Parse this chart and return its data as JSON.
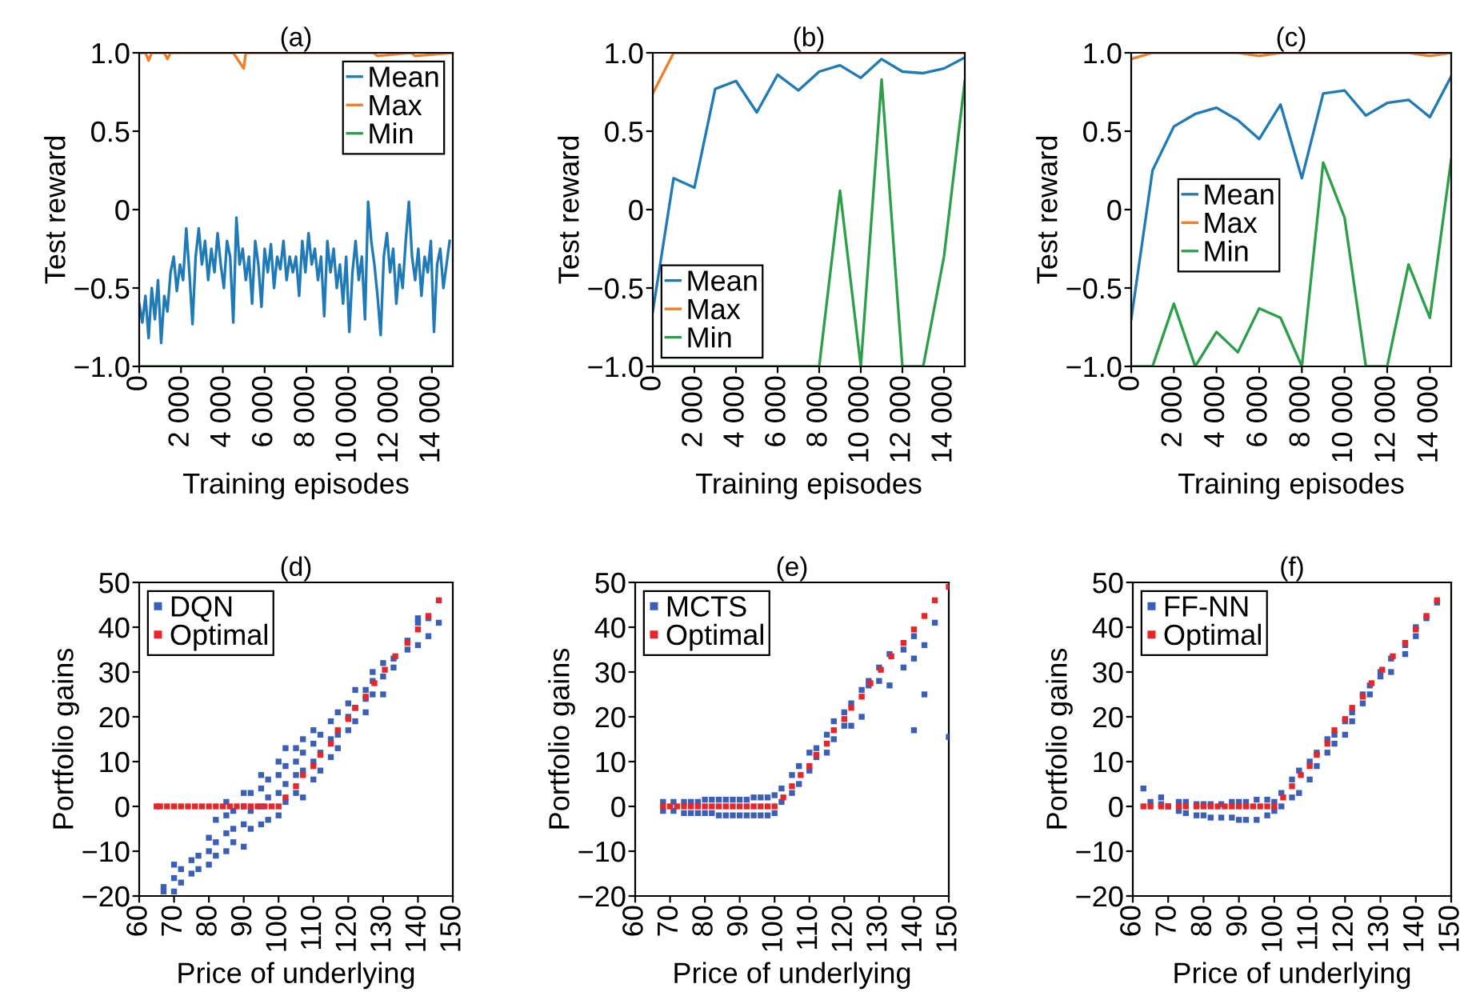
{
  "chart_data": [
    {
      "type": "line",
      "title": "(a)",
      "xlabel": "Training episodes",
      "ylabel": "Test reward",
      "xlim": [
        0,
        15000
      ],
      "ylim": [
        -1.0,
        1.0
      ],
      "xticks": [
        0,
        {
          "value": 2000,
          "label": "2 000"
        },
        {
          "value": 4000,
          "label": "4 000"
        },
        {
          "value": 6000,
          "label": "6 000"
        },
        {
          "value": 8000,
          "label": "8 000"
        },
        {
          "value": 10000,
          "label": "10 000"
        },
        {
          "value": 12000,
          "label": "12 000"
        },
        {
          "value": 14000,
          "label": "14 000"
        }
      ],
      "yticks": [
        {
          "value": 1.0,
          "label": "1.0"
        },
        {
          "value": 0.5,
          "label": "0.5"
        },
        0,
        {
          "value": -0.5,
          "label": "−0.5"
        },
        {
          "value": -1.0,
          "label": "−1.0"
        }
      ],
      "legend": "top right",
      "line_style": "solid",
      "grid": false,
      "series": [
        {
          "name": "Mean",
          "color": "#1f7ab8",
          "x": [
            0,
            150,
            300,
            450,
            600,
            750,
            900,
            1050,
            1200,
            1350,
            1500,
            1650,
            1800,
            1950,
            2100,
            2250,
            2400,
            2550,
            2700,
            2850,
            3000,
            3150,
            3300,
            3450,
            3600,
            3750,
            3900,
            4050,
            4200,
            4350,
            4500,
            4650,
            4800,
            4950,
            5100,
            5250,
            5400,
            5550,
            5700,
            5850,
            6000,
            6150,
            6300,
            6450,
            6600,
            6750,
            6900,
            7050,
            7200,
            7350,
            7500,
            7650,
            7800,
            7950,
            8100,
            8250,
            8400,
            8550,
            8700,
            8850,
            9000,
            9150,
            9300,
            9450,
            9600,
            9750,
            9900,
            10050,
            10200,
            10350,
            10500,
            10650,
            10800,
            10950,
            11100,
            11250,
            11400,
            11550,
            11700,
            11850,
            12000,
            12150,
            12300,
            12450,
            12600,
            12750,
            12900,
            13050,
            13200,
            13350,
            13500,
            13650,
            13800,
            13950,
            14100,
            14250,
            14400,
            14550,
            14700,
            14850
          ],
          "values": [
            -0.6,
            -0.72,
            -0.55,
            -0.82,
            -0.5,
            -0.7,
            -0.45,
            -0.85,
            -0.55,
            -0.65,
            -0.4,
            -0.3,
            -0.52,
            -0.35,
            -0.45,
            -0.12,
            -0.4,
            -0.73,
            -0.3,
            -0.12,
            -0.35,
            -0.2,
            -0.45,
            -0.25,
            -0.4,
            -0.15,
            -0.35,
            -0.5,
            -0.2,
            -0.3,
            -0.72,
            -0.05,
            -0.35,
            -0.25,
            -0.45,
            -0.3,
            -0.6,
            -0.2,
            -0.35,
            -0.62,
            -0.25,
            -0.4,
            -0.22,
            -0.5,
            -0.3,
            -0.38,
            -0.2,
            -0.45,
            -0.3,
            -0.4,
            -0.3,
            -0.55,
            -0.2,
            -0.4,
            -0.15,
            -0.35,
            -0.25,
            -0.45,
            -0.3,
            -0.68,
            -0.2,
            -0.4,
            -0.25,
            -0.5,
            -0.35,
            -0.6,
            -0.3,
            -0.78,
            -0.4,
            -0.2,
            -0.45,
            -0.3,
            -0.7,
            0.05,
            -0.2,
            -0.35,
            -0.55,
            -0.8,
            -0.3,
            -0.15,
            -0.4,
            -0.25,
            -0.6,
            -0.35,
            -0.5,
            -0.2,
            0.05,
            -0.3,
            -0.45,
            -0.25,
            -0.55,
            -0.3,
            -0.4,
            -0.2,
            -0.78,
            -0.35,
            -0.25,
            -0.5,
            -0.35,
            -0.2
          ]
        },
        {
          "name": "Max",
          "color": "#f07e26",
          "x": [
            0,
            300,
            450,
            600,
            1200,
            1350,
            1500,
            2400,
            4500,
            5000,
            5100,
            5400,
            8100,
            9000,
            10300,
            11200,
            11400,
            13000,
            13200,
            15000
          ],
          "values": [
            1.0,
            1.0,
            0.95,
            1.0,
            1.0,
            0.96,
            1.0,
            1.0,
            1.0,
            0.9,
            1.0,
            1.0,
            1.0,
            1.0,
            1.0,
            1.0,
            0.98,
            1.0,
            0.98,
            1.0
          ]
        },
        {
          "name": "Min",
          "color": "#2ca048",
          "x": [
            0,
            15000
          ],
          "values": [
            -1.0,
            -1.0
          ]
        }
      ]
    },
    {
      "type": "line",
      "title": "(b)",
      "xlabel": "Training episodes",
      "ylabel": "Test reward",
      "xlim": [
        0,
        15000
      ],
      "ylim": [
        -1.0,
        1.0
      ],
      "xticks": [
        0,
        {
          "value": 2000,
          "label": "2 000"
        },
        {
          "value": 4000,
          "label": "4 000"
        },
        {
          "value": 6000,
          "label": "6 000"
        },
        {
          "value": 8000,
          "label": "8 000"
        },
        {
          "value": 10000,
          "label": "10 000"
        },
        {
          "value": 12000,
          "label": "12 000"
        },
        {
          "value": 14000,
          "label": "14 000"
        }
      ],
      "yticks": [
        {
          "value": 1.0,
          "label": "1.0"
        },
        {
          "value": 0.5,
          "label": "0.5"
        },
        0,
        {
          "value": -0.5,
          "label": "−0.5"
        },
        {
          "value": -1.0,
          "label": "−1.0"
        }
      ],
      "legend": "bottom left",
      "line_style": "solid",
      "grid": false,
      "series": [
        {
          "name": "Mean",
          "color": "#1f7ab8",
          "x": [
            0,
            1000,
            2000,
            3000,
            4000,
            5000,
            6000,
            7000,
            8000,
            9000,
            10000,
            11000,
            12000,
            13000,
            14000,
            15000
          ],
          "values": [
            -0.65,
            0.2,
            0.14,
            0.77,
            0.82,
            0.62,
            0.86,
            0.76,
            0.88,
            0.92,
            0.84,
            0.96,
            0.88,
            0.87,
            0.9,
            0.97
          ]
        },
        {
          "name": "Max",
          "color": "#f07e26",
          "x": [
            0,
            1000,
            2000,
            3000,
            4000,
            5000,
            6000,
            7000,
            8000,
            9000,
            10000,
            11000,
            12000,
            13000,
            14000,
            15000
          ],
          "values": [
            0.74,
            1.0,
            1.0,
            1.0,
            1.0,
            1.0,
            1.0,
            1.0,
            1.0,
            1.0,
            1.0,
            1.0,
            1.0,
            1.0,
            1.0,
            1.0
          ]
        },
        {
          "name": "Min",
          "color": "#2ca048",
          "x": [
            0,
            1000,
            2000,
            3000,
            4000,
            5000,
            6000,
            7000,
            8000,
            9000,
            10000,
            11000,
            12000,
            13000,
            14000,
            15000
          ],
          "values": [
            -1.0,
            -1.0,
            -1.0,
            -1.0,
            -1.0,
            -1.0,
            -1.0,
            -1.0,
            -1.0,
            0.12,
            -1.0,
            0.83,
            -1.0,
            -1.0,
            -0.3,
            0.82
          ]
        }
      ]
    },
    {
      "type": "line",
      "title": "(c)",
      "xlabel": "Training episodes",
      "ylabel": "Test reward",
      "xlim": [
        0,
        15000
      ],
      "ylim": [
        -1.0,
        1.0
      ],
      "xticks": [
        0,
        {
          "value": 2000,
          "label": "2 000"
        },
        {
          "value": 4000,
          "label": "4 000"
        },
        {
          "value": 6000,
          "label": "6 000"
        },
        {
          "value": 8000,
          "label": "8 000"
        },
        {
          "value": 10000,
          "label": "10 000"
        },
        {
          "value": 12000,
          "label": "12 000"
        },
        {
          "value": 14000,
          "label": "14 000"
        }
      ],
      "yticks": [
        {
          "value": 1.0,
          "label": "1.0"
        },
        {
          "value": 0.5,
          "label": "0.5"
        },
        0,
        {
          "value": -0.5,
          "label": "−0.5"
        },
        {
          "value": -1.0,
          "label": "−1.0"
        }
      ],
      "legend": "center left",
      "line_style": "solid",
      "grid": false,
      "series": [
        {
          "name": "Mean",
          "color": "#1f7ab8",
          "x": [
            0,
            1000,
            2000,
            3000,
            4000,
            5000,
            6000,
            7000,
            8000,
            9000,
            10000,
            11000,
            12000,
            13000,
            14000,
            15000
          ],
          "values": [
            -0.7,
            0.25,
            0.53,
            0.61,
            0.65,
            0.57,
            0.45,
            0.67,
            0.2,
            0.74,
            0.76,
            0.6,
            0.68,
            0.7,
            0.59,
            0.85
          ]
        },
        {
          "name": "Max",
          "color": "#f07e26",
          "x": [
            0,
            1000,
            2000,
            3000,
            4000,
            5000,
            6000,
            7000,
            8000,
            9000,
            10000,
            11000,
            12000,
            13000,
            14000,
            15000
          ],
          "values": [
            0.96,
            1.0,
            1.0,
            1.0,
            1.0,
            1.0,
            0.98,
            1.0,
            1.0,
            1.0,
            1.0,
            1.0,
            1.0,
            1.0,
            0.98,
            1.0
          ]
        },
        {
          "name": "Min",
          "color": "#2ca048",
          "x": [
            0,
            1000,
            2000,
            3000,
            4000,
            5000,
            6000,
            7000,
            8000,
            9000,
            10000,
            11000,
            12000,
            13000,
            14000,
            15000
          ],
          "values": [
            -1.0,
            -1.0,
            -0.6,
            -1.0,
            -0.78,
            -0.91,
            -0.63,
            -0.69,
            -1.0,
            0.3,
            -0.05,
            -1.0,
            -1.0,
            -0.35,
            -0.69,
            0.32
          ]
        }
      ]
    },
    {
      "type": "scatter",
      "title": "(d)",
      "xlabel": "Price of underlying",
      "ylabel": "Portfolio gains",
      "xlim": [
        60,
        150
      ],
      "ylim": [
        -20,
        50
      ],
      "xticks": [
        60,
        70,
        80,
        90,
        100,
        110,
        120,
        130,
        140,
        150
      ],
      "yticks": [
        50,
        40,
        30,
        20,
        10,
        0,
        {
          "value": -10,
          "label": "−10"
        },
        {
          "value": -20,
          "label": "−20"
        }
      ],
      "legend": "top left",
      "marker": "square",
      "grid": false,
      "series": [
        {
          "name": "DQN",
          "color": "#3a5fb8",
          "x": [
            67,
            67,
            70,
            70,
            70,
            72,
            72,
            75,
            75,
            77,
            77,
            80,
            80,
            80,
            82,
            82,
            82,
            85,
            85,
            85,
            85,
            87,
            87,
            87,
            90,
            90,
            90,
            90,
            92,
            92,
            92,
            95,
            95,
            95,
            95,
            97,
            97,
            97,
            100,
            100,
            100,
            100,
            102,
            102,
            102,
            102,
            105,
            105,
            105,
            105,
            107,
            107,
            107,
            107,
            110,
            110,
            110,
            110,
            112,
            112,
            112,
            115,
            115,
            115,
            117,
            117,
            117,
            120,
            120,
            120,
            122,
            122,
            122,
            125,
            125,
            125,
            127,
            127,
            127,
            130,
            130,
            130,
            133,
            133,
            137,
            137,
            140,
            140,
            140,
            143,
            143,
            146
          ],
          "values": [
            -19,
            -18,
            -19,
            -16,
            -13,
            -17,
            -14,
            -15,
            -12,
            -14,
            -11,
            -13,
            -10,
            -7,
            -11,
            -8,
            -3,
            -10,
            -6,
            -2,
            1,
            -8,
            -5,
            -1,
            -9,
            -4,
            0,
            3,
            -5,
            -1,
            3,
            -4,
            0,
            4,
            7,
            -3,
            2,
            6,
            -2,
            3,
            7,
            10,
            1,
            5,
            9,
            13,
            3,
            7,
            10,
            13,
            2,
            8,
            12,
            15,
            6,
            10,
            14,
            17,
            8,
            12,
            16,
            11,
            15,
            19,
            13,
            16,
            21,
            17,
            20,
            23,
            19,
            22,
            26,
            21,
            24,
            26,
            25,
            28,
            30,
            25,
            29,
            32,
            31,
            33,
            35,
            37,
            36,
            41,
            42,
            38,
            42,
            41
          ]
        },
        {
          "name": "Optimal",
          "color": "#e8262a",
          "x": [
            65,
            66,
            68,
            70,
            72,
            74,
            76,
            78,
            80,
            82,
            84,
            86,
            88,
            90,
            92,
            94,
            96,
            98,
            100,
            102,
            105,
            107,
            110,
            112,
            115,
            117,
            120,
            122,
            125,
            127.5,
            130.5,
            133.5,
            137,
            140,
            143,
            146
          ],
          "values": [
            0,
            0,
            0,
            0,
            0,
            0,
            0,
            0,
            0,
            0,
            0,
            0,
            0,
            0,
            0,
            0,
            0,
            0,
            0,
            2,
            4.5,
            7,
            9,
            11.5,
            14,
            17,
            19.5,
            22,
            24.5,
            27.5,
            30.5,
            33.5,
            36.5,
            39.5,
            42.5,
            46
          ]
        }
      ]
    },
    {
      "type": "scatter",
      "title": "(e)",
      "xlabel": "Price of underlying",
      "ylabel": "Portfolio gains",
      "xlim": [
        60,
        150
      ],
      "ylim": [
        -20,
        50
      ],
      "xticks": [
        60,
        70,
        80,
        90,
        100,
        110,
        120,
        130,
        140,
        150
      ],
      "yticks": [
        50,
        40,
        30,
        20,
        10,
        0,
        {
          "value": -10,
          "label": "−10"
        },
        {
          "value": -20,
          "label": "−20"
        }
      ],
      "legend": "top left",
      "marker": "square",
      "grid": false,
      "series": [
        {
          "name": "MCTS",
          "color": "#3a5fb8",
          "x": [
            68,
            68,
            71,
            71,
            74,
            74,
            76,
            76,
            78,
            78,
            80,
            80,
            82,
            82,
            84,
            84,
            86,
            86,
            88,
            88,
            90,
            90,
            92,
            92,
            94,
            94,
            96,
            96,
            98,
            98,
            100,
            100,
            102,
            102,
            105,
            105,
            107,
            107,
            110,
            110,
            112,
            112,
            115,
            115,
            117,
            117,
            120,
            120,
            122,
            122,
            125,
            125,
            127,
            127,
            130,
            130,
            133,
            133,
            137,
            137,
            140,
            140,
            140,
            143,
            143,
            146,
            150
          ],
          "values": [
            -1,
            1,
            -1,
            1,
            -1.5,
            1,
            -1.5,
            1,
            -1.5,
            1,
            -1.5,
            1.5,
            -1.5,
            1.5,
            -2,
            1.5,
            -2,
            1.5,
            -2,
            1.5,
            -2,
            1.5,
            -2,
            1.5,
            -2,
            2,
            -2,
            2,
            -2,
            2,
            -1.5,
            2.5,
            1,
            4,
            3,
            7,
            5,
            9,
            8,
            12,
            11,
            13,
            12,
            16,
            15,
            19,
            18,
            21,
            18,
            23,
            20,
            26,
            27,
            28,
            28,
            31,
            27,
            34,
            31,
            35,
            17,
            33,
            38,
            25,
            36,
            41,
            15.5
          ]
        },
        {
          "name": "Optimal",
          "color": "#e8262a",
          "x": [
            68,
            70,
            72,
            74,
            76,
            78,
            80,
            82,
            84,
            86,
            88,
            90,
            92,
            94,
            96,
            98,
            100,
            102.5,
            105,
            107.5,
            110,
            112,
            115,
            117,
            120,
            122,
            125,
            127.5,
            130.5,
            133.5,
            137,
            140,
            143,
            146,
            150
          ],
          "values": [
            0,
            0,
            0,
            0,
            0,
            0,
            0,
            0,
            0,
            0,
            0,
            0,
            0,
            0,
            0,
            0,
            0,
            2,
            4.5,
            7,
            9,
            11.5,
            14,
            17,
            19.5,
            22,
            24.5,
            27.5,
            30.5,
            33.5,
            36.5,
            39.5,
            42.5,
            46,
            49
          ]
        }
      ]
    },
    {
      "type": "scatter",
      "title": "(f)",
      "xlabel": "Price of underlying",
      "ylabel": "Portfolio gains",
      "xlim": [
        60,
        150
      ],
      "ylim": [
        -20,
        50
      ],
      "xticks": [
        60,
        70,
        80,
        90,
        100,
        110,
        120,
        130,
        140,
        150
      ],
      "yticks": [
        50,
        40,
        30,
        20,
        10,
        0,
        {
          "value": -10,
          "label": "−10"
        },
        {
          "value": -20,
          "label": "−20"
        }
      ],
      "legend": "top left",
      "marker": "square",
      "grid": false,
      "series": [
        {
          "name": "FF-NN",
          "color": "#3a5fb8",
          "x": [
            63,
            65,
            68,
            68,
            70,
            73,
            73,
            75,
            75,
            78,
            78,
            80,
            80,
            82,
            82,
            85,
            85,
            88,
            88,
            90,
            90,
            92,
            92,
            95,
            95,
            98,
            98,
            100,
            100,
            102,
            102,
            105,
            105,
            107,
            107,
            110,
            110,
            112,
            112,
            115,
            115,
            117,
            117,
            120,
            120,
            122,
            122,
            125,
            125,
            127,
            127,
            130,
            130,
            133,
            133,
            137,
            137,
            140,
            140,
            143,
            146
          ],
          "values": [
            4,
            1,
            2,
            0.5,
            0,
            -1,
            1,
            -1.5,
            1,
            -2,
            0.5,
            -2,
            0.5,
            -2.5,
            0.5,
            -2.5,
            0.5,
            -2.5,
            1,
            -3,
            1,
            -3,
            1,
            -3,
            1.5,
            -2,
            1.5,
            -1,
            1,
            0,
            3,
            2,
            6,
            3,
            8,
            6,
            10,
            9,
            12,
            12,
            15,
            14,
            16,
            16,
            19,
            19,
            21,
            23,
            25,
            25,
            27,
            29,
            30,
            30,
            33,
            34,
            36,
            38,
            40,
            42,
            45.5
          ]
        },
        {
          "name": "Optimal",
          "color": "#e8262a",
          "x": [
            63,
            65,
            68,
            70,
            73,
            75,
            78,
            80,
            82,
            84,
            86,
            88,
            90,
            92,
            94,
            96,
            98,
            100,
            102.5,
            105,
            107.5,
            110,
            112,
            115,
            117,
            120,
            122,
            125,
            127.5,
            130.5,
            133.5,
            137,
            140,
            143,
            146
          ],
          "values": [
            0,
            0,
            0,
            0,
            0,
            0,
            0,
            0,
            0,
            0,
            0,
            0,
            0,
            0,
            0,
            0,
            0,
            0,
            2,
            4.5,
            7,
            9,
            11.5,
            14,
            17,
            19.5,
            22,
            24.5,
            27.5,
            30.5,
            33.5,
            36.5,
            39.5,
            42.5,
            46
          ]
        }
      ]
    }
  ]
}
